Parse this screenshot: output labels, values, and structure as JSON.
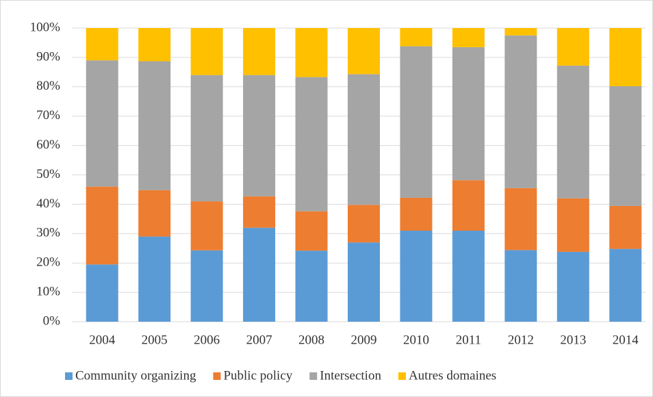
{
  "chart_data": {
    "type": "stacked_bar",
    "categories": [
      "2004",
      "2005",
      "2006",
      "2007",
      "2008",
      "2009",
      "2010",
      "2011",
      "2012",
      "2013",
      "2014"
    ],
    "series": [
      {
        "name": "Community organizing",
        "color": "#5b9bd5",
        "values": [
          19.5,
          29,
          24.3,
          32,
          24.2,
          27,
          31,
          31,
          24.4,
          23.8,
          24.8
        ]
      },
      {
        "name": "Public policy",
        "color": "#ed7d31",
        "values": [
          26.5,
          15.8,
          16.7,
          10.7,
          13.4,
          12.8,
          11.2,
          17.2,
          21.1,
          18.2,
          14.6
        ]
      },
      {
        "name": "Intersection",
        "color": "#a5a5a5",
        "values": [
          43,
          43.9,
          43,
          41.3,
          45.7,
          44.5,
          51.6,
          45.3,
          52,
          45.2,
          40.8
        ]
      },
      {
        "name": "Autres domaines",
        "color": "#ffc000",
        "values": [
          11,
          11.3,
          16,
          16,
          16.7,
          15.7,
          6.2,
          6.5,
          2.5,
          12.8,
          19.8
        ]
      }
    ],
    "ylim": [
      0,
      100
    ],
    "yticks": [
      {
        "value": 0,
        "label": "0%"
      },
      {
        "value": 10,
        "label": "10%"
      },
      {
        "value": 20,
        "label": "20%"
      },
      {
        "value": 30,
        "label": "30%"
      },
      {
        "value": 40,
        "label": "40%"
      },
      {
        "value": 50,
        "label": "50%"
      },
      {
        "value": 60,
        "label": "60%"
      },
      {
        "value": 70,
        "label": "70%"
      },
      {
        "value": 80,
        "label": "80%"
      },
      {
        "value": 90,
        "label": "90%"
      },
      {
        "value": 100,
        "label": "100%"
      }
    ],
    "grid": true,
    "legend": "bottom"
  }
}
